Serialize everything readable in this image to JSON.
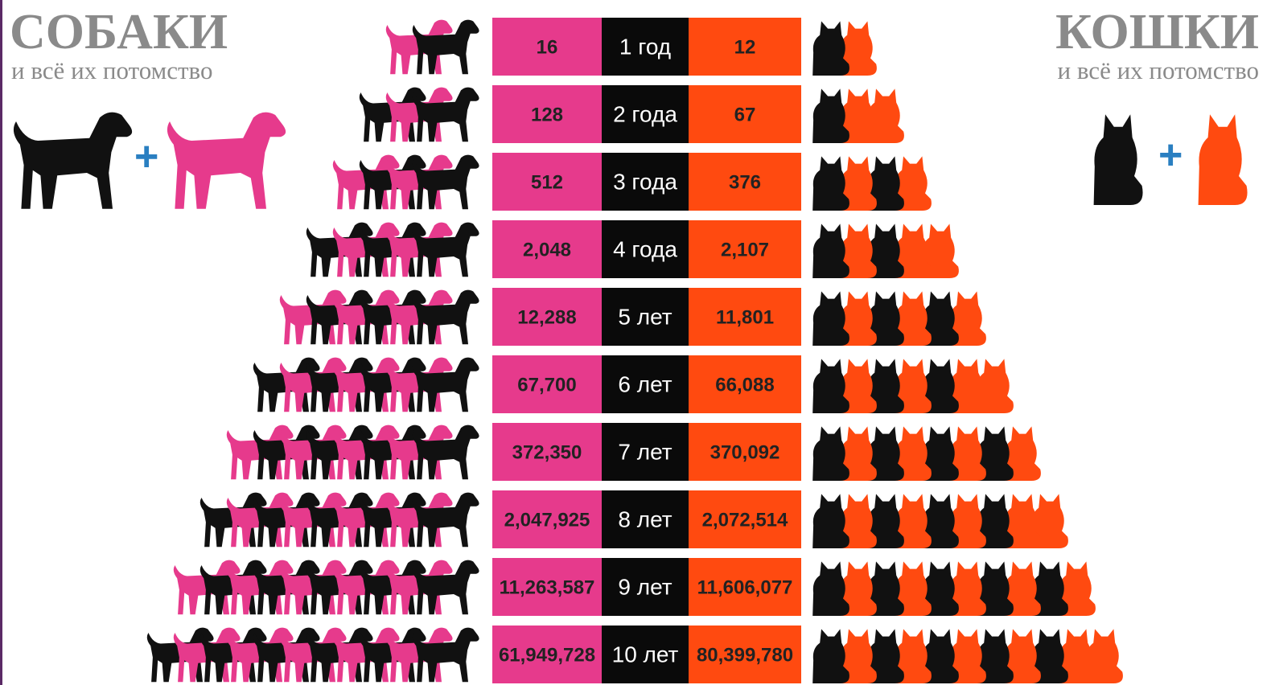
{
  "header": {
    "dogs_title": "СОБАКИ",
    "dogs_subtitle": "и всё их потомство",
    "cats_title": "КОШКИ",
    "cats_subtitle": "и всё их потомство",
    "plus_left": "+",
    "plus_right": "+"
  },
  "rows": [
    {
      "dogs": "16",
      "period": "1 год",
      "cats": "12"
    },
    {
      "dogs": "128",
      "period": "2 года",
      "cats": "67"
    },
    {
      "dogs": "512",
      "period": "3 года",
      "cats": "376"
    },
    {
      "dogs": "2,048",
      "period": "4 года",
      "cats": "2,107"
    },
    {
      "dogs": "12,288",
      "period": "5 лет",
      "cats": "11,801"
    },
    {
      "dogs": "67,700",
      "period": "6 лет",
      "cats": "66,088"
    },
    {
      "dogs": "372,350",
      "period": "7 лет",
      "cats": "370,092"
    },
    {
      "dogs": "2,047,925",
      "period": "8 лет",
      "cats": "2,072,514"
    },
    {
      "dogs": "11,263,587",
      "period": "9 лет",
      "cats": "11,606,077"
    },
    {
      "dogs": "61,949,728",
      "period": "10 лет",
      "cats": "80,399,780"
    }
  ]
}
